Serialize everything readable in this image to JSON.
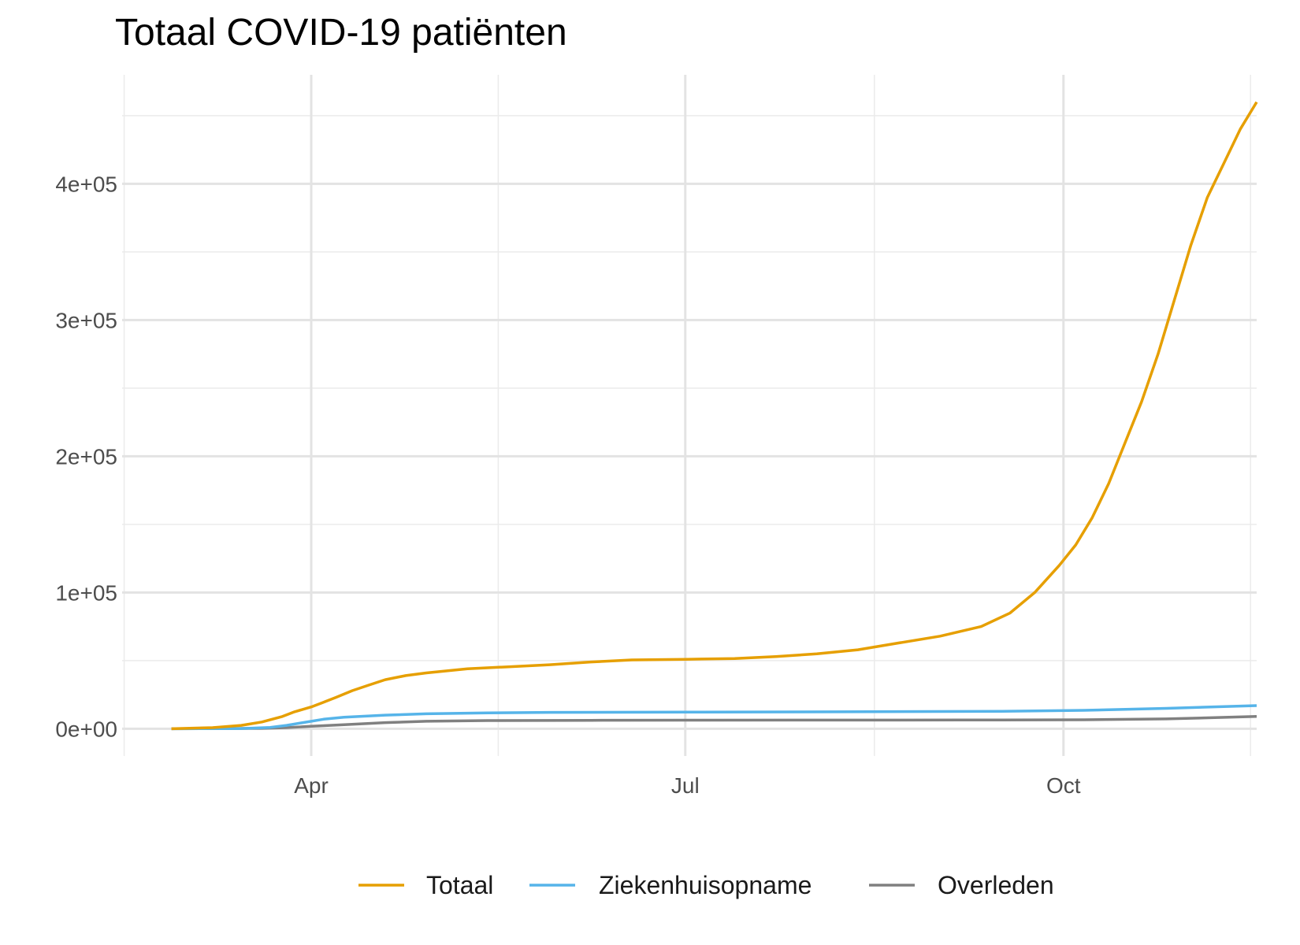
{
  "chart_data": {
    "type": "line",
    "title": "Totaal COVID-19 patiënten",
    "xlabel": "",
    "ylabel": "",
    "x_ticks": [
      "Apr",
      "Jul",
      "Oct"
    ],
    "x_tick_days": [
      92,
      183,
      275
    ],
    "x_range_days": [
      46,
      322
    ],
    "y_ticks": [
      "0e+00",
      "1e+05",
      "2e+05",
      "3e+05",
      "4e+05"
    ],
    "y_tick_values": [
      0,
      100000,
      200000,
      300000,
      400000
    ],
    "ylim": [
      -20000,
      480000
    ],
    "grid": true,
    "legend_position": "bottom",
    "series": [
      {
        "name": "Totaal",
        "color": "#E69F00",
        "points": [
          [
            58,
            0
          ],
          [
            68,
            800
          ],
          [
            75,
            2500
          ],
          [
            80,
            5000
          ],
          [
            85,
            9000
          ],
          [
            88,
            12500
          ],
          [
            92,
            16000
          ],
          [
            95,
            19500
          ],
          [
            98,
            23000
          ],
          [
            102,
            28000
          ],
          [
            106,
            32000
          ],
          [
            110,
            36000
          ],
          [
            115,
            39000
          ],
          [
            120,
            41000
          ],
          [
            130,
            44000
          ],
          [
            140,
            45500
          ],
          [
            150,
            47000
          ],
          [
            160,
            49000
          ],
          [
            170,
            50500
          ],
          [
            183,
            51000
          ],
          [
            195,
            51500
          ],
          [
            205,
            53000
          ],
          [
            215,
            55000
          ],
          [
            225,
            58000
          ],
          [
            235,
            63000
          ],
          [
            245,
            68000
          ],
          [
            255,
            75000
          ],
          [
            262,
            85000
          ],
          [
            268,
            100000
          ],
          [
            274,
            120000
          ],
          [
            278,
            135000
          ],
          [
            282,
            155000
          ],
          [
            286,
            180000
          ],
          [
            290,
            210000
          ],
          [
            294,
            240000
          ],
          [
            298,
            275000
          ],
          [
            302,
            315000
          ],
          [
            306,
            355000
          ],
          [
            310,
            390000
          ],
          [
            314,
            415000
          ],
          [
            318,
            440000
          ],
          [
            322,
            460000
          ]
        ]
      },
      {
        "name": "Ziekenhuisopname",
        "color": "#56B4E9",
        "points": [
          [
            58,
            0
          ],
          [
            75,
            200
          ],
          [
            82,
            1000
          ],
          [
            86,
            2500
          ],
          [
            90,
            4500
          ],
          [
            95,
            7000
          ],
          [
            100,
            8500
          ],
          [
            110,
            10000
          ],
          [
            120,
            11000
          ],
          [
            135,
            11700
          ],
          [
            150,
            12000
          ],
          [
            183,
            12200
          ],
          [
            220,
            12400
          ],
          [
            260,
            12800
          ],
          [
            280,
            13500
          ],
          [
            300,
            15000
          ],
          [
            322,
            17000
          ]
        ]
      },
      {
        "name": "Overleden",
        "color": "#808080",
        "points": [
          [
            58,
            0
          ],
          [
            80,
            300
          ],
          [
            86,
            800
          ],
          [
            92,
            1800
          ],
          [
            100,
            3000
          ],
          [
            110,
            4500
          ],
          [
            120,
            5500
          ],
          [
            135,
            6000
          ],
          [
            160,
            6200
          ],
          [
            183,
            6300
          ],
          [
            250,
            6400
          ],
          [
            280,
            6600
          ],
          [
            300,
            7200
          ],
          [
            322,
            9000
          ]
        ]
      }
    ]
  }
}
